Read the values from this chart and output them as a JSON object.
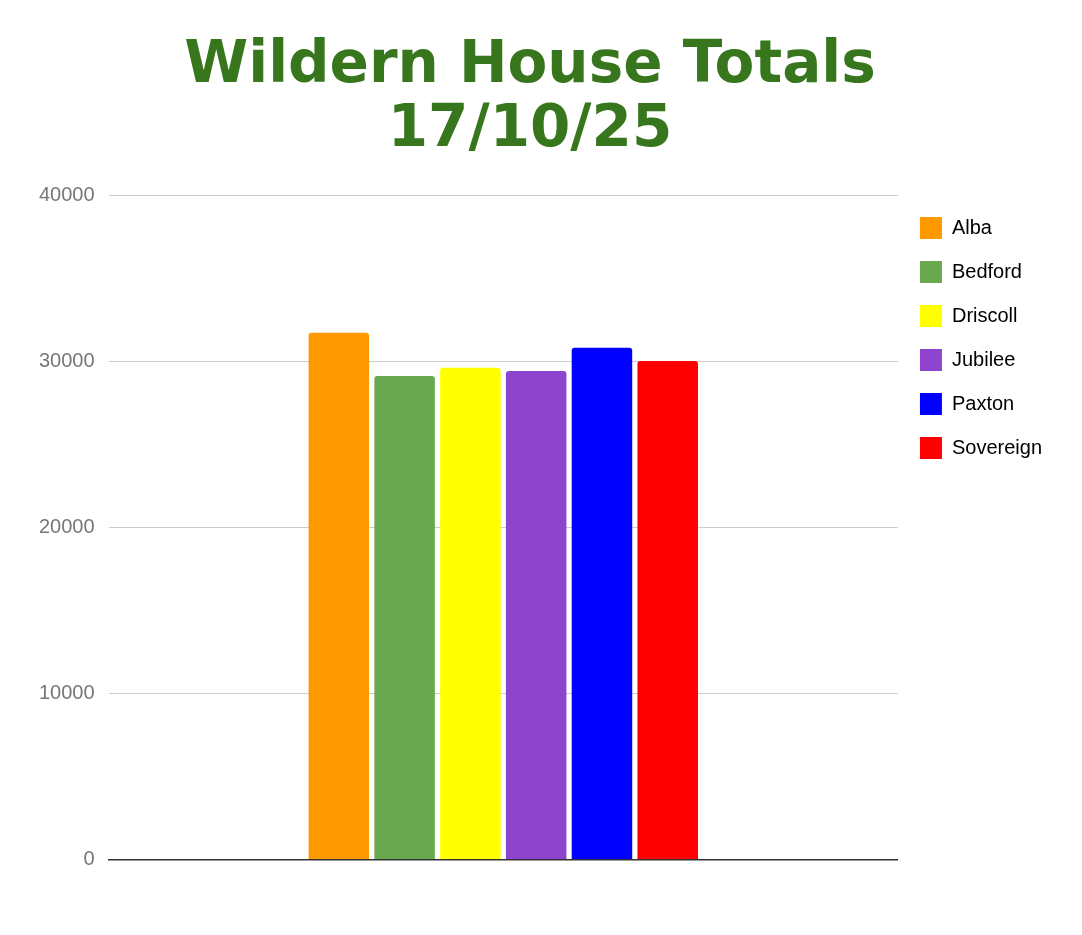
{
  "chart_data": {
    "type": "bar",
    "title": "Wildern House Totals\n17/10/25",
    "categories": [
      null
    ],
    "series": [
      {
        "name": "Alba",
        "color": "#ff9900",
        "values": [
          31700
        ]
      },
      {
        "name": "Bedford",
        "color": "#6aa84f",
        "values": [
          29100
        ]
      },
      {
        "name": "Driscoll",
        "color": "#ffff00",
        "values": [
          29600
        ]
      },
      {
        "name": "Jubilee",
        "color": "#8e44cc",
        "values": [
          29400
        ]
      },
      {
        "name": "Paxton",
        "color": "#0000ff",
        "values": [
          30800
        ]
      },
      {
        "name": "Sovereign",
        "color": "#ff0000",
        "values": [
          30000
        ]
      }
    ],
    "ylim": [
      0,
      40000
    ],
    "yticks": [
      0,
      10000,
      20000,
      30000,
      40000
    ],
    "grid": "y",
    "legend": "right"
  }
}
